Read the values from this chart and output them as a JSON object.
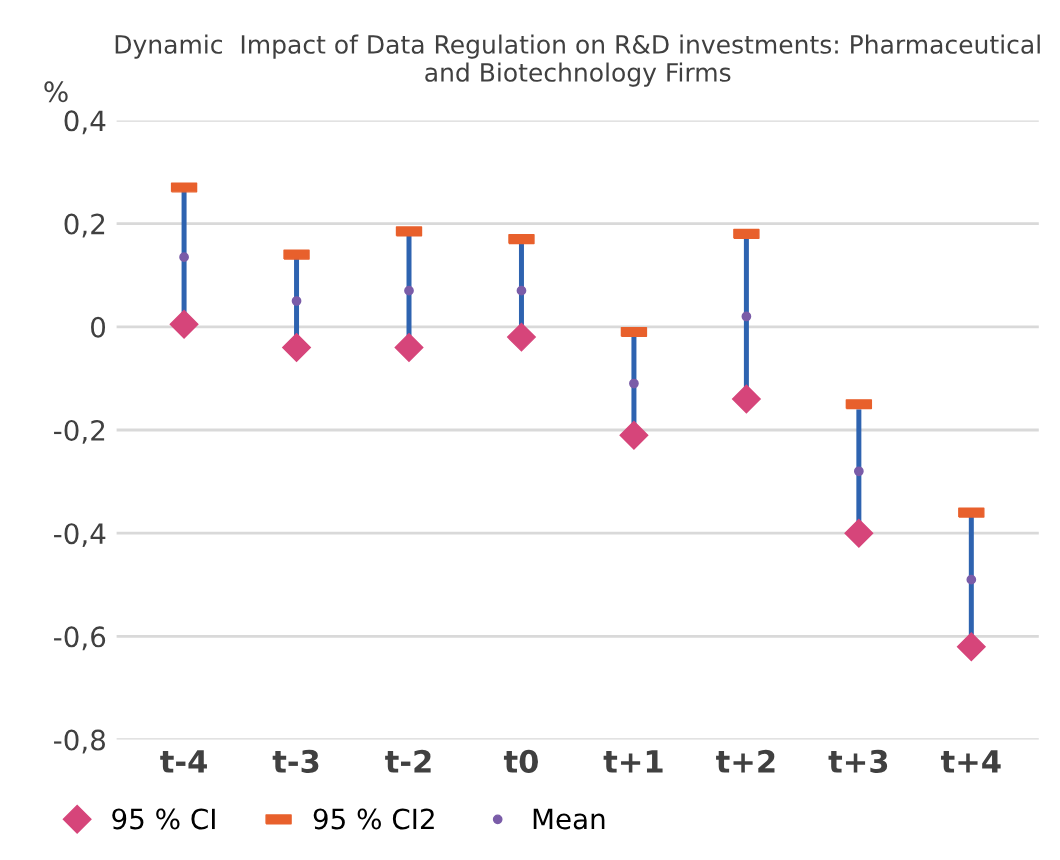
{
  "chart_data": {
    "type": "scatter",
    "title": "Dynamic  Impact of Data Regulation on R&D investments: Pharmaceutical\nand Biotechnology Firms",
    "ylabel": "%",
    "categories": [
      "t-4",
      "t-3",
      "t-2",
      "t0",
      "t+1",
      "t+2",
      "t+3",
      "t+4"
    ],
    "series": [
      {
        "name": "95 % CI",
        "color": "#d6457a",
        "marker": "diamond",
        "values": [
          0.005,
          -0.04,
          -0.04,
          -0.02,
          -0.21,
          -0.14,
          -0.4,
          -0.62
        ]
      },
      {
        "name": "95 % CI2",
        "color": "#e8602c",
        "values": [
          0.27,
          0.14,
          0.185,
          0.17,
          -0.01,
          0.18,
          -0.15,
          -0.36
        ]
      },
      {
        "name": "Mean",
        "color": "#7a5ca8",
        "marker": "circle",
        "values": [
          0.135,
          0.05,
          0.07,
          0.07,
          -0.11,
          0.02,
          -0.28,
          -0.49
        ],
        "errors": [
          [
            0.13,
            0.13
          ],
          [
            0.09,
            0.09
          ],
          [
            0.11,
            0.11
          ],
          [
            0.1,
            0.1
          ],
          [
            0.1,
            0.1
          ],
          [
            0.16,
            0.16
          ],
          [
            0.12,
            0.12
          ],
          [
            0.13,
            0.13
          ]
        ]
      }
    ],
    "ylim": [
      -0.8,
      0.4
    ],
    "yticks": [
      {
        "value": -0.8,
        "label": "-0,8"
      },
      {
        "value": -0.6,
        "label": "-0,6"
      },
      {
        "value": -0.4,
        "label": "-0,4"
      },
      {
        "value": -0.2,
        "label": "-0,2"
      },
      0,
      {
        "value": 0.2,
        "label": "0,2"
      },
      {
        "value": 0.4,
        "label": "0,4"
      }
    ],
    "grid": "y",
    "legend": "bottom left"
  }
}
